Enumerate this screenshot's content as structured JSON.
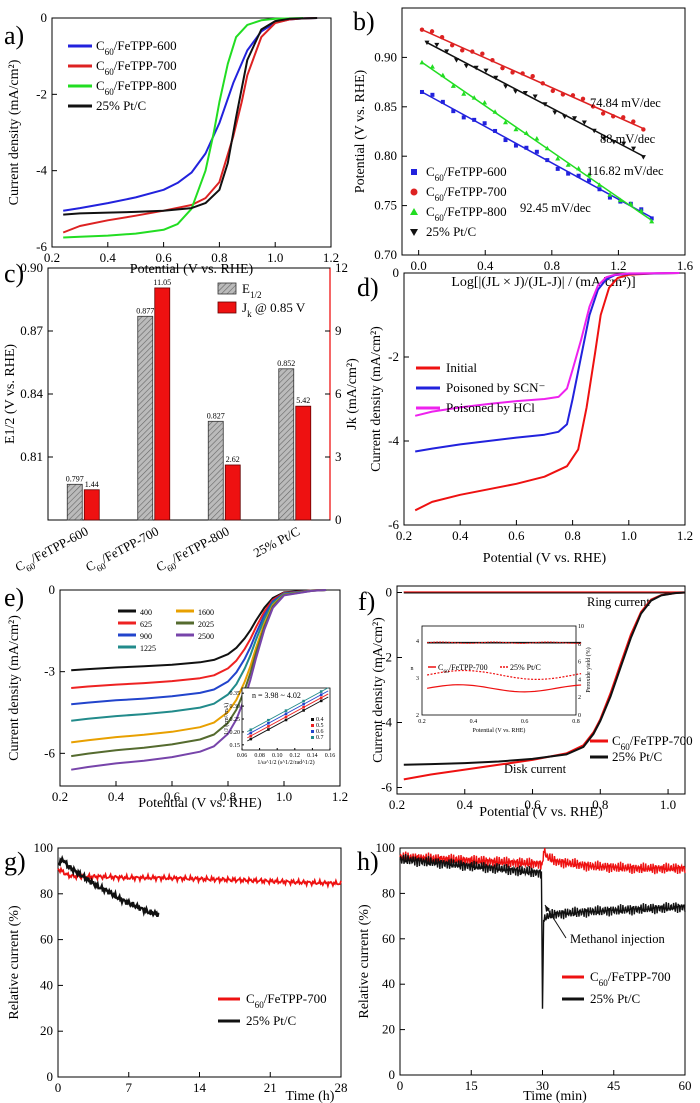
{
  "chart_data": [
    {
      "panel": "a)",
      "type": "line",
      "xlabel": "Potential (V vs. RHE)",
      "ylabel": "Current density (mA/cm²)",
      "xlim": [
        0.2,
        1.2
      ],
      "ylim": [
        -6,
        0
      ],
      "xticks": [
        "0.2",
        "0.4",
        "0.6",
        "0.8",
        "1.0",
        "1.2"
      ],
      "yticks": [
        "-6",
        "-4",
        "-2",
        "0"
      ],
      "legend_position": "top-left",
      "series": [
        {
          "name": "C60/FeTPP-600",
          "color": "#2222dd",
          "x": [
            0.24,
            0.3,
            0.4,
            0.5,
            0.6,
            0.65,
            0.7,
            0.75,
            0.8,
            0.85,
            0.9,
            0.95,
            1.0,
            1.05,
            1.1,
            1.15
          ],
          "y": [
            -5.05,
            -4.98,
            -4.85,
            -4.7,
            -4.5,
            -4.32,
            -4.05,
            -3.55,
            -2.75,
            -1.7,
            -0.85,
            -0.35,
            -0.12,
            -0.04,
            -0.01,
            0
          ]
        },
        {
          "name": "C60/FeTPP-700",
          "color": "#dd2222",
          "x": [
            0.24,
            0.3,
            0.4,
            0.5,
            0.6,
            0.7,
            0.75,
            0.8,
            0.85,
            0.88,
            0.9,
            0.95,
            1.0,
            1.05,
            1.1,
            1.15
          ],
          "y": [
            -5.62,
            -5.45,
            -5.3,
            -5.18,
            -5.05,
            -4.9,
            -4.72,
            -4.3,
            -3.1,
            -2.2,
            -1.5,
            -0.5,
            -0.13,
            -0.04,
            -0.01,
            0
          ]
        },
        {
          "name": "C60/FeTPP-800",
          "color": "#22dd22",
          "x": [
            0.24,
            0.3,
            0.4,
            0.5,
            0.6,
            0.65,
            0.7,
            0.75,
            0.78,
            0.8,
            0.83,
            0.86,
            0.9,
            0.95,
            1.0,
            1.1
          ],
          "y": [
            -5.75,
            -5.73,
            -5.7,
            -5.65,
            -5.55,
            -5.4,
            -5.0,
            -4.0,
            -3.0,
            -2.2,
            -1.2,
            -0.5,
            -0.18,
            -0.06,
            -0.02,
            0
          ]
        },
        {
          "name": "25% Pt/C",
          "color": "#111111",
          "x": [
            0.24,
            0.3,
            0.4,
            0.5,
            0.6,
            0.7,
            0.75,
            0.8,
            0.83,
            0.86,
            0.9,
            0.95,
            1.0,
            1.05,
            1.1,
            1.15
          ],
          "y": [
            -5.15,
            -5.12,
            -5.1,
            -5.08,
            -5.05,
            -4.98,
            -4.85,
            -4.5,
            -3.8,
            -2.6,
            -1.1,
            -0.3,
            -0.08,
            -0.02,
            -0.01,
            0
          ]
        }
      ]
    },
    {
      "panel": "b)",
      "type": "scatter",
      "xlabel": "Log[|(JL × J)/(JL-J)| / (mA/cm²)]",
      "ylabel": "Potential (V vs. RHE)",
      "xlim": [
        -0.1,
        1.6
      ],
      "ylim": [
        0.7,
        0.95
      ],
      "xticks": [
        "0.0",
        "0.4",
        "0.8",
        "1.2",
        "1.6"
      ],
      "yticks": [
        "0.70",
        "0.75",
        "0.80",
        "0.85",
        "0.90"
      ],
      "legend_position": "bottom-left",
      "series": [
        {
          "name": "C60/FeTPP-600",
          "color": "#2222dd",
          "marker": "square",
          "x0": 0.02,
          "y0": 0.865,
          "x1": 1.4,
          "y1": 0.738,
          "slope_label": "92.45 mV/dec"
        },
        {
          "name": "C60/FeTPP-700",
          "color": "#dd2222",
          "marker": "circle",
          "x0": 0.02,
          "y0": 0.928,
          "x1": 1.35,
          "y1": 0.828,
          "slope_label": "74.84 mV/dec"
        },
        {
          "name": "C60/FeTPP-800",
          "color": "#22dd22",
          "marker": "triangle-up",
          "x0": 0.02,
          "y0": 0.895,
          "x1": 1.4,
          "y1": 0.735,
          "slope_label": "116.82 mV/dec"
        },
        {
          "name": "25% Pt/C",
          "color": "#111111",
          "marker": "triangle-down",
          "x0": 0.05,
          "y0": 0.915,
          "x1": 1.35,
          "y1": 0.8,
          "slope_label": "88 mV/dec"
        }
      ]
    },
    {
      "panel": "c)",
      "type": "bar",
      "ylabel": "E1/2 (V vs. RHE)",
      "y2label": "Jk (mA/cm²)",
      "ylim": [
        0.78,
        0.9
      ],
      "y2lim": [
        0,
        12
      ],
      "yticks": [
        "0.81",
        "0.84",
        "0.87",
        "0.90"
      ],
      "y2ticks": [
        "0",
        "3",
        "6",
        "9",
        "12"
      ],
      "categories": [
        "C60/FeTPP-600",
        "C60/FeTPP-700",
        "C60/FeTPP-800",
        "25% Pt/C"
      ],
      "legend_position": "top-center",
      "series": [
        {
          "name": "E1/2",
          "color": "#aaaaaa",
          "values": [
            0.797,
            0.877,
            0.827,
            0.852
          ],
          "labels": [
            "0.797",
            "0.877",
            "0.827",
            "0.852"
          ]
        },
        {
          "name": "Jk @ 0.85 V",
          "color": "#ee1111",
          "values": [
            1.44,
            11.05,
            2.62,
            5.42
          ],
          "labels": [
            "1.44",
            "11.05",
            "2.62",
            "5.42"
          ]
        }
      ]
    },
    {
      "panel": "d)",
      "type": "line",
      "xlabel": "Potential (V vs. RHE)",
      "ylabel": "Current density (mA/cm²)",
      "xlim": [
        0.2,
        1.2
      ],
      "ylim": [
        -6,
        0
      ],
      "xticks": [
        "0.2",
        "0.4",
        "0.6",
        "0.8",
        "1.0",
        "1.2"
      ],
      "yticks": [
        "-6",
        "-4",
        "-2",
        "0"
      ],
      "legend_position": "middle-left",
      "series": [
        {
          "name": "Initial",
          "color": "#ee1111",
          "x": [
            0.24,
            0.3,
            0.4,
            0.5,
            0.6,
            0.7,
            0.78,
            0.82,
            0.85,
            0.88,
            0.9,
            0.93,
            0.96,
            1.0,
            1.1,
            1.18
          ],
          "y": [
            -5.65,
            -5.45,
            -5.28,
            -5.15,
            -5.02,
            -4.85,
            -4.6,
            -4.2,
            -3.2,
            -1.9,
            -1.0,
            -0.35,
            -0.12,
            -0.04,
            -0.01,
            0
          ]
        },
        {
          "name": "Poisoned by SCN⁻",
          "color": "#2222dd",
          "x": [
            0.24,
            0.3,
            0.4,
            0.5,
            0.6,
            0.7,
            0.75,
            0.78,
            0.8,
            0.83,
            0.86,
            0.89,
            0.92,
            0.95,
            1.0,
            1.18
          ],
          "y": [
            -4.25,
            -4.18,
            -4.08,
            -4.0,
            -3.92,
            -3.85,
            -3.78,
            -3.6,
            -3.0,
            -2.0,
            -1.0,
            -0.4,
            -0.15,
            -0.05,
            -0.02,
            0
          ]
        },
        {
          "name": "Poisoned by HCl",
          "color": "#ee22ee",
          "x": [
            0.24,
            0.3,
            0.4,
            0.5,
            0.6,
            0.7,
            0.75,
            0.78,
            0.8,
            0.83,
            0.86,
            0.89,
            0.92,
            0.95,
            1.0,
            1.18
          ],
          "y": [
            -3.4,
            -3.3,
            -3.2,
            -3.12,
            -3.05,
            -3.0,
            -2.95,
            -2.75,
            -2.3,
            -1.6,
            -0.8,
            -0.3,
            -0.1,
            -0.04,
            -0.01,
            0
          ]
        }
      ]
    },
    {
      "panel": "e)",
      "type": "line",
      "xlabel": "Potential (V vs. RHE)",
      "ylabel": "Current density (mA/cm²)",
      "xlim": [
        0.2,
        1.2
      ],
      "ylim": [
        -7.2,
        0
      ],
      "xticks": [
        "0.2",
        "0.4",
        "0.6",
        "0.8",
        "1.0",
        "1.2"
      ],
      "yticks": [
        "-6",
        "-3",
        "0"
      ],
      "legend_position": "top-center",
      "series": [
        {
          "name": "400",
          "color": "#111111",
          "plateau": -2.95
        },
        {
          "name": "625",
          "color": "#ee2222",
          "plateau": -3.6
        },
        {
          "name": "900",
          "color": "#2244cc",
          "plateau": -4.2
        },
        {
          "name": "1225",
          "color": "#228b8b",
          "plateau": -4.8
        },
        {
          "name": "1600",
          "color": "#e8a000",
          "plateau": -5.6
        },
        {
          "name": "2025",
          "color": "#556b2f",
          "plateau": -6.1
        },
        {
          "name": "2500",
          "color": "#7744aa",
          "plateau": -6.6
        }
      ],
      "inset": {
        "annotation": "n = 3.98 ~ 4.02",
        "xlabel": "1/ω^1/2 (s^1/2/rad^1/2)",
        "ylabel": "1/J (cm²/mA)",
        "xticks": [
          "0.06",
          "0.08",
          "0.10",
          "0.12",
          "0.14",
          "0.16"
        ],
        "yticks": [
          "0.15",
          "0.20",
          "0.25",
          "0.30",
          "0.35"
        ],
        "legend": [
          "0.4",
          "0.5",
          "0.6",
          "0.7"
        ],
        "legend_colors": [
          "#111111",
          "#ee2222",
          "#2244cc",
          "#228b8b"
        ]
      }
    },
    {
      "panel": "f)",
      "type": "line",
      "xlabel": "Potential (V vs. RHE)",
      "ylabel": "Current density (mA/cm²)",
      "xlim": [
        0.2,
        1.05
      ],
      "ylim": [
        -6.2,
        0.2
      ],
      "xticks": [
        "0.2",
        "0.4",
        "0.6",
        "0.8",
        "1.0"
      ],
      "yticks": [
        "-6",
        "-4",
        "-2",
        "0"
      ],
      "annotations": [
        "Ring current",
        "Disk current"
      ],
      "legend_position": "bottom-right",
      "series": [
        {
          "name": "C60/FeTPP-700",
          "color": "#ee1111"
        },
        {
          "name": "25% Pt/C",
          "color": "#111111"
        }
      ],
      "inset": {
        "xlabel": "Potential (V vs. RHE)",
        "ylabel": "n",
        "y2label": "Peroxide yield (%)",
        "xticks": [
          "0.2",
          "0.4",
          "0.6",
          "0.8"
        ],
        "yticks": [
          "2",
          "3",
          "4"
        ],
        "y2ticks": [
          "0",
          "2",
          "4",
          "6",
          "8",
          "10"
        ],
        "legend": [
          "C60/FeTPP-700",
          "25% Pt/C"
        ]
      }
    },
    {
      "panel": "g)",
      "type": "line",
      "xlabel": "Time (h)",
      "ylabel": "Relative current (%)",
      "xlim": [
        0,
        28
      ],
      "ylim": [
        0,
        100
      ],
      "xticks": [
        "0",
        "7",
        "14",
        "21",
        "28"
      ],
      "yticks": [
        "0",
        "20",
        "40",
        "60",
        "80",
        "100"
      ],
      "legend_position": "bottom-right",
      "series": [
        {
          "name": "C60/FeTPP-700",
          "color": "#ee1111",
          "x": [
            0,
            1,
            2,
            4,
            7,
            10,
            14,
            18,
            21,
            24,
            28
          ],
          "y": [
            91,
            88,
            87.5,
            87.5,
            87,
            87,
            86.5,
            86,
            85.5,
            85,
            84.5
          ]
        },
        {
          "name": "25% Pt/C",
          "color": "#111111",
          "x": [
            0,
            0.5,
            1,
            2,
            3,
            4,
            5,
            6,
            7,
            8,
            9,
            10
          ],
          "y": [
            93,
            95,
            92,
            89,
            86,
            83,
            81,
            78,
            76,
            74,
            72,
            71
          ]
        }
      ]
    },
    {
      "panel": "h)",
      "type": "line",
      "xlabel": "Time (min)",
      "ylabel": "Relative current (%)",
      "xlim": [
        0,
        60
      ],
      "ylim": [
        0,
        100
      ],
      "xticks": [
        "0",
        "15",
        "30",
        "45",
        "60"
      ],
      "yticks": [
        "0",
        "20",
        "40",
        "60",
        "80",
        "100"
      ],
      "annotations": [
        "Methanol injection"
      ],
      "legend_position": "bottom-right",
      "series": [
        {
          "name": "C60/FeTPP-700",
          "color": "#ee1111",
          "x": [
            0,
            10,
            20,
            29.8,
            30,
            30.2,
            31,
            33,
            40,
            50,
            60
          ],
          "y": [
            96,
            95,
            94,
            93,
            92,
            99,
            96,
            94,
            92,
            91,
            91
          ]
        },
        {
          "name": "25% Pt/C",
          "color": "#111111",
          "x": [
            0,
            10,
            20,
            29.8,
            30,
            30.2,
            31,
            33,
            40,
            50,
            60
          ],
          "y": [
            95,
            93,
            91,
            89,
            27,
            68,
            70,
            71,
            72,
            73,
            74
          ]
        }
      ]
    }
  ]
}
